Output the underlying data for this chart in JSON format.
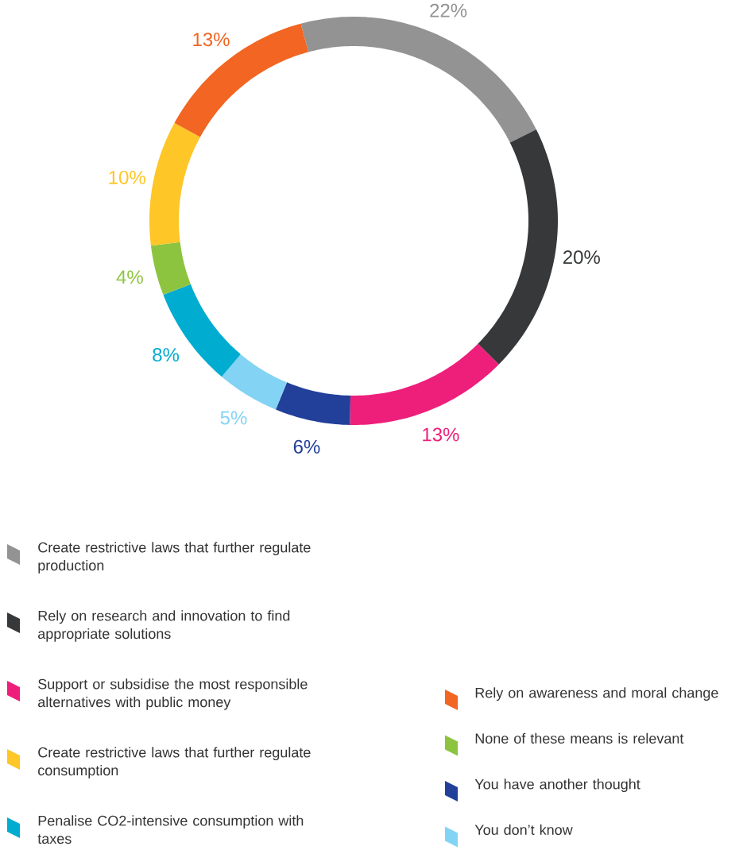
{
  "chart_data": {
    "type": "donut",
    "categories": [
      "Create restrictive laws that further regulate production",
      "Rely on research and innovation to find appropriate solutions",
      "Support or subsidise the most responsible alternatives with public money",
      "You have another thought",
      "You don’t know",
      "Penalise CO2-intensive consumption with taxes",
      "None of these means is relevant",
      "Create restrictive laws that further regulate consumption",
      "Rely on awareness and moral change"
    ],
    "values": [
      22,
      20,
      13,
      6,
      5,
      8,
      4,
      10,
      13
    ],
    "value_labels": [
      "22%",
      "20%",
      "13%",
      "6%",
      "5%",
      "8%",
      "4%",
      "10%",
      "13%"
    ],
    "colors": [
      "#939393",
      "#36383a",
      "#ee1f7b",
      "#22409a",
      "#83d3f5",
      "#00acd0",
      "#8dc43f",
      "#fec627",
      "#f26522"
    ],
    "legend": "bottom"
  }
}
